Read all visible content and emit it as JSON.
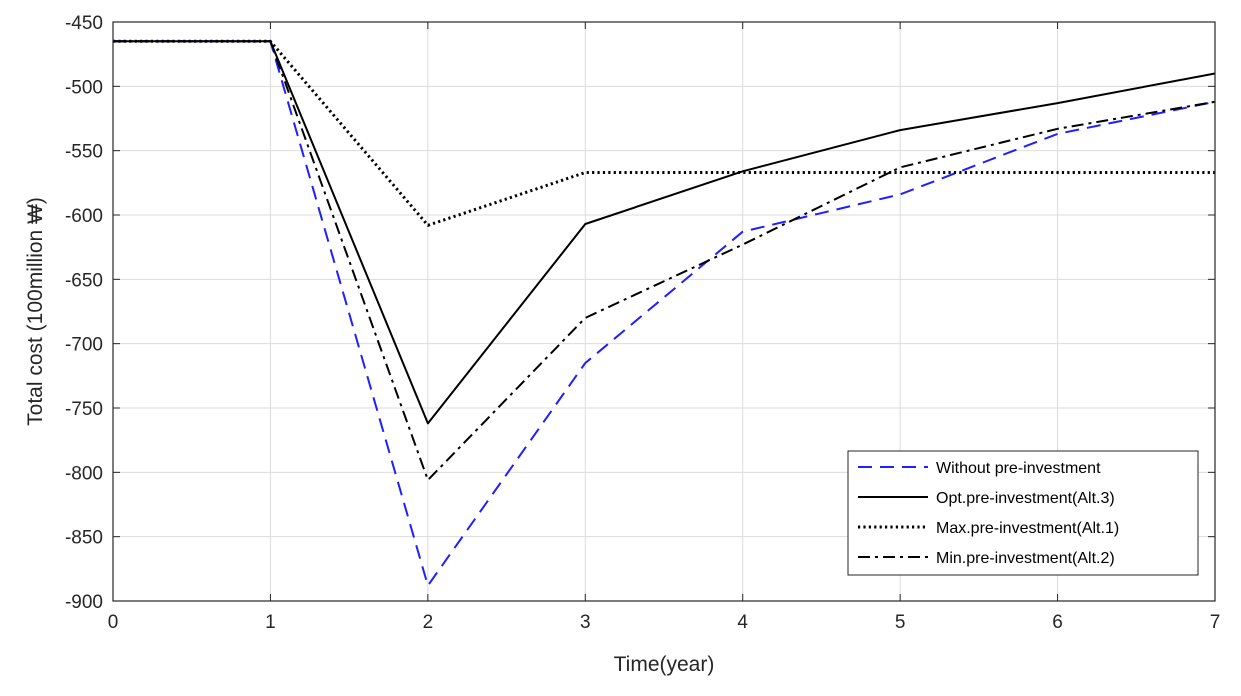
{
  "chart_data": {
    "type": "line",
    "title": "",
    "xlabel": "Time(year)",
    "ylabel": "Total cost (100million ₩)",
    "xlim": [
      0,
      7
    ],
    "ylim": [
      -900,
      -450
    ],
    "x_ticks": [
      0,
      1,
      2,
      3,
      4,
      5,
      6,
      7
    ],
    "y_ticks": [
      -450,
      -500,
      -550,
      -600,
      -650,
      -700,
      -750,
      -800,
      -850,
      -900
    ],
    "grid": true,
    "legend_position": "bottom-right",
    "series": [
      {
        "name": "Without pre-investment",
        "color": "#1f1fff",
        "style": "dashed",
        "x": [
          0,
          1,
          2,
          3,
          4,
          5,
          6,
          7
        ],
        "y": [
          -465,
          -465,
          -888,
          -715,
          -613,
          -584,
          -537,
          -512
        ]
      },
      {
        "name": "Opt.pre-investment(Alt.3)",
        "color": "#000000",
        "style": "solid",
        "x": [
          0,
          1,
          2,
          3,
          4,
          5,
          6,
          7
        ],
        "y": [
          -465,
          -465,
          -762,
          -607,
          -566,
          -534,
          -513,
          -490
        ]
      },
      {
        "name": "Max.pre-investment(Alt.1)",
        "color": "#000000",
        "style": "dotted",
        "x": [
          0,
          1,
          2,
          3,
          4,
          5,
          6,
          7
        ],
        "y": [
          -465,
          -465,
          -608,
          -567,
          -567,
          -567,
          -567,
          -567
        ]
      },
      {
        "name": "Min.pre-investment(Alt.2)",
        "color": "#000000",
        "style": "dashdot",
        "x": [
          0,
          1,
          2,
          3,
          4,
          5,
          6,
          7
        ],
        "y": [
          -465,
          -465,
          -806,
          -680,
          -623,
          -563,
          -533,
          -512
        ]
      }
    ]
  }
}
